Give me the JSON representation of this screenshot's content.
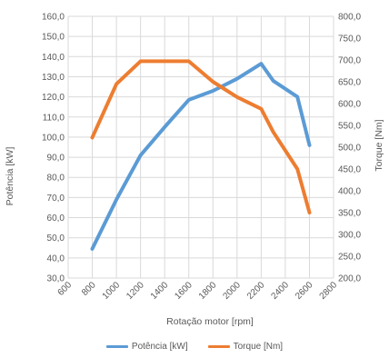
{
  "chart_data": {
    "type": "line",
    "title": "",
    "xlabel": "Rotação motor [rpm]",
    "ylabel": "Potência [kW]",
    "y2label": "Torque [Nm]",
    "xlim": [
      600,
      2800
    ],
    "ylim": [
      30,
      160
    ],
    "y2lim": [
      200,
      800
    ],
    "x_ticks": [
      "600",
      "800",
      "1000",
      "1200",
      "1400",
      "1600",
      "1800",
      "2000",
      "2200",
      "2400",
      "2600",
      "2800"
    ],
    "y_ticks": [
      "30,0",
      "40,0",
      "50,0",
      "60,0",
      "70,0",
      "80,0",
      "90,0",
      "100,0",
      "110,0",
      "120,0",
      "130,0",
      "140,0",
      "150,0",
      "160,0"
    ],
    "y2_ticks": [
      "200,0",
      "250,0",
      "300,0",
      "350,0",
      "400,0",
      "450,0",
      "500,0",
      "550,0",
      "600,0",
      "650,0",
      "700,0",
      "750,0",
      "800,0"
    ],
    "grid": true,
    "legend_position": "bottom",
    "series": [
      {
        "name": "Potência [kW]",
        "axis": "left",
        "color": "#5B9BD5",
        "x": [
          800,
          1000,
          1200,
          1400,
          1600,
          1800,
          2000,
          2200,
          2300,
          2500,
          2600
        ],
        "y": [
          44.5,
          69,
          91,
          105,
          118.5,
          123,
          129,
          136.5,
          128,
          120,
          96
        ]
      },
      {
        "name": "Torque [Nm]",
        "axis": "right",
        "color": "#ED7D31",
        "x": [
          800,
          1000,
          1200,
          1400,
          1600,
          1800,
          2000,
          2200,
          2300,
          2500,
          2600
        ],
        "y": [
          522,
          645,
          697,
          697,
          697,
          650,
          615,
          588,
          535,
          450,
          350
        ]
      }
    ]
  }
}
